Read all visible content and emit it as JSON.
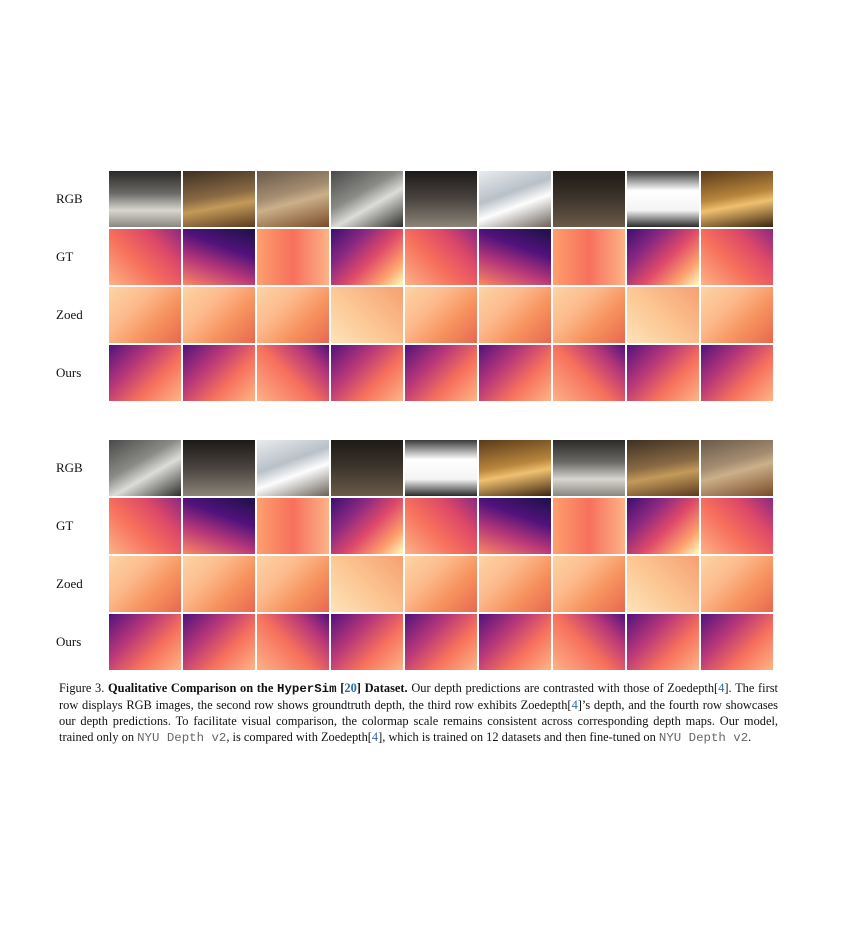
{
  "grid": {
    "top": {
      "rows": [
        {
          "label": "RGB",
          "kind": "rgb"
        },
        {
          "label": "GT",
          "kind": "gt"
        },
        {
          "label": "Zoed",
          "kind": "zoed"
        },
        {
          "label": "Ours",
          "kind": "ours"
        }
      ],
      "columns": 9
    },
    "bottom": {
      "rows": [
        {
          "label": "RGB",
          "kind": "rgb"
        },
        {
          "label": "GT",
          "kind": "gt"
        },
        {
          "label": "Zoed",
          "kind": "zoed"
        },
        {
          "label": "Ours",
          "kind": "ours"
        }
      ],
      "columns": 9
    }
  },
  "caption": {
    "figure_label": "Figure 3.",
    "title_prefix": "Qualitative Comparison on the",
    "title_dataset": "HyperSim",
    "title_cite_open": "[",
    "title_cite": "20",
    "title_cite_close": "]",
    "title_suffix": "Dataset.",
    "text_1": "Our depth predictions are contrasted with those of Zoedepth[",
    "cite_1": "4",
    "text_2": "]. The first row displays RGB images, the second row shows groundtruth depth, the third row exhibits Zoedepth[",
    "cite_2": "4",
    "text_3": "]’s depth, and the fourth row showcases our depth predictions. To facilitate visual comparison, the colormap scale remains consistent across corresponding depth maps. Our model, trained only on",
    "dataset_1": "NYU Depth v2",
    "text_4": ", is compared with Zoedepth[",
    "cite_3": "4",
    "text_5": "], which is trained on 12 datasets and then fine-tuned on",
    "dataset_2": "NYU Depth v2",
    "text_6": "."
  }
}
